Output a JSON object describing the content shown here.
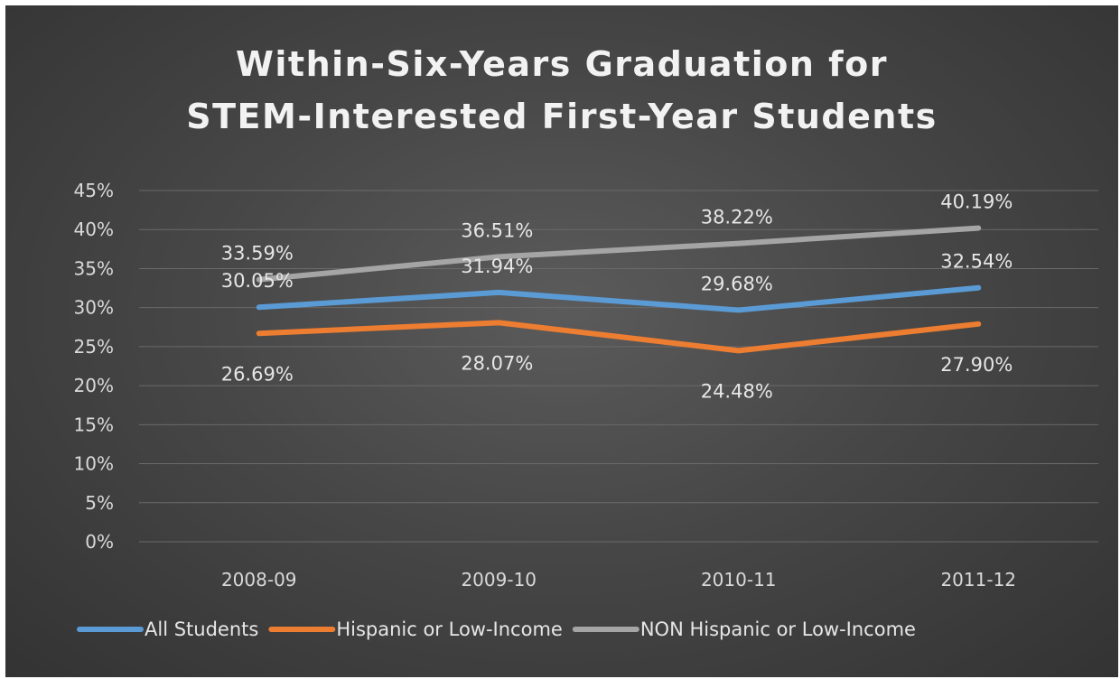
{
  "chart_data": {
    "type": "line",
    "title_lines": [
      "Within-Six-Years Graduation for",
      "STEM-Interested First-Year Students"
    ],
    "categories": [
      "2008-09",
      "2009-10",
      "2010-11",
      "2011-12"
    ],
    "y_ticks": [
      "0%",
      "5%",
      "10%",
      "15%",
      "20%",
      "25%",
      "30%",
      "35%",
      "40%",
      "45%"
    ],
    "ylim": [
      0,
      45
    ],
    "grid": true,
    "legend_position": "bottom",
    "series": [
      {
        "name": "All Students",
        "color": "#5b9bd5",
        "values": [
          30.05,
          31.94,
          29.68,
          32.54
        ],
        "labels": [
          "30.05%",
          "31.94%",
          "29.68%",
          "32.54%"
        ],
        "label_position": "above"
      },
      {
        "name": "Hispanic or Low-Income",
        "color": "#ed7d31",
        "values": [
          26.69,
          28.07,
          24.48,
          27.9
        ],
        "labels": [
          "26.69%",
          "28.07%",
          "24.48%",
          "27.90%"
        ],
        "label_position": "below"
      },
      {
        "name": "NON Hispanic or Low-Income",
        "color": "#a5a5a5",
        "values": [
          33.59,
          36.51,
          38.22,
          40.19
        ],
        "labels": [
          "33.59%",
          "36.51%",
          "38.22%",
          "40.19%"
        ],
        "label_position": "above"
      }
    ]
  }
}
